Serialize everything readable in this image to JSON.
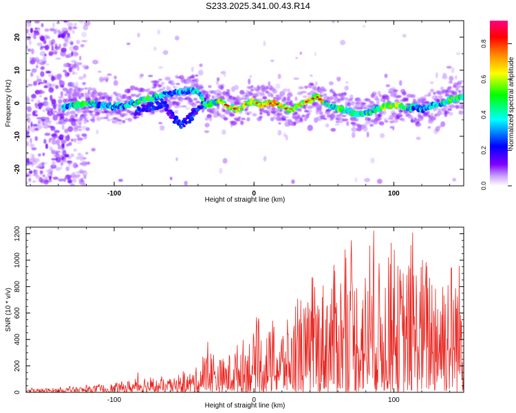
{
  "title": "S233.2025.341.00.43.R14",
  "chart_data": [
    {
      "type": "heatmap",
      "name": "spectrogram",
      "xlabel": "Height of straight line (km)",
      "ylabel": "Frequency (Hz)",
      "xlim": [
        -163,
        150
      ],
      "ylim": [
        -25,
        25
      ],
      "xticks": [
        -100,
        0,
        100
      ],
      "yticks": [
        -20,
        -10,
        0,
        10,
        20
      ],
      "colorbar": {
        "label": "Normalized spectral amplitude",
        "range": [
          0.0,
          0.93
        ],
        "ticks": [
          0.0,
          0.2,
          0.4,
          0.6,
          0.8
        ],
        "colors": [
          "#ffffff",
          "#c8a0ff",
          "#8000ff",
          "#0000ff",
          "#00ffff",
          "#00ff00",
          "#ffff00",
          "#ff8000",
          "#ff0000",
          "#ff0080"
        ]
      },
      "ridge": {
        "x": [
          -135,
          -120,
          -100,
          -90,
          -80,
          -70,
          -60,
          -50,
          -40,
          -35,
          -30,
          -25,
          -20,
          -15,
          -10,
          -5,
          0,
          5,
          10,
          15,
          20,
          25,
          30,
          35,
          40,
          45,
          50,
          55,
          60,
          65,
          70,
          75,
          80,
          85,
          90,
          95,
          100,
          105,
          110,
          115,
          120,
          125,
          130,
          135,
          140,
          145,
          150
        ],
        "y": [
          -1,
          0,
          -1,
          -0.5,
          1,
          2,
          3,
          3.5,
          4,
          -0.5,
          0,
          0.5,
          -0.5,
          -1.5,
          -2,
          0,
          0.5,
          -0.5,
          0,
          0,
          -1,
          -2,
          -1,
          0,
          1,
          2,
          0,
          -1,
          -1.5,
          -2,
          -3,
          -3.5,
          -3,
          -2,
          -1.5,
          -1,
          -0.5,
          -1,
          -1.5,
          -1,
          -2,
          -1,
          -0.5,
          0,
          1,
          1.5,
          2
        ]
      },
      "branch": {
        "x": [
          -85,
          -75,
          -65,
          -58,
          -52,
          -45,
          -40,
          -35
        ],
        "y": [
          -3,
          -1,
          0,
          -4,
          -7,
          -4,
          -1,
          0
        ]
      }
    },
    {
      "type": "line",
      "name": "snr",
      "xlabel": "Height of straight line (km)",
      "ylabel": "SNR (10 * v/v)",
      "xlim": [
        -163,
        150
      ],
      "ylim": [
        0,
        1250
      ],
      "xticks": [
        -100,
        0,
        100
      ],
      "yticks": [
        0,
        200,
        400,
        600,
        800,
        1000,
        1200
      ],
      "color": "#e8231d",
      "envelope": {
        "x": [
          -163,
          -140,
          -120,
          -100,
          -85,
          -80,
          -75,
          -60,
          -50,
          -40,
          -35,
          -30,
          -25,
          -20,
          -10,
          0,
          10,
          20,
          30,
          40,
          50,
          60,
          70,
          80,
          90,
          100,
          110,
          120,
          130,
          140,
          150
        ],
        "y": [
          25,
          35,
          45,
          70,
          100,
          150,
          100,
          100,
          130,
          200,
          300,
          350,
          260,
          270,
          400,
          460,
          480,
          520,
          600,
          720,
          880,
          1000,
          950,
          960,
          1000,
          980,
          1000,
          1050,
          1050,
          1050,
          1000
        ]
      }
    }
  ]
}
